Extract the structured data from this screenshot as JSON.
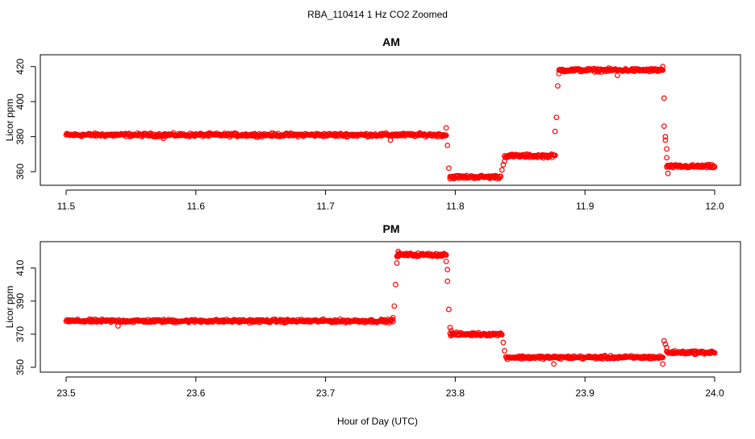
{
  "figure": {
    "title": "RBA_110414  1 Hz CO2 Zoomed",
    "xlabel": "Hour of Day (UTC)"
  },
  "chart_data": [
    {
      "type": "scatter",
      "title": "AM",
      "xlabel": "",
      "ylabel": "Licor ppm",
      "xlim": [
        11.5,
        12.0
      ],
      "ylim": [
        355,
        424
      ],
      "xticks": [
        11.5,
        11.6,
        11.7,
        11.8,
        11.9,
        12.0
      ],
      "xtick_labels": [
        "11.5",
        "11.6",
        "11.7",
        "11.8",
        "11.9",
        "12.0"
      ],
      "yticks": [
        360,
        380,
        400,
        420
      ],
      "ytick_labels": [
        "360",
        "380",
        "400",
        "420"
      ],
      "grid": false,
      "marker": "open-circle",
      "color": "#ff0000",
      "segments": [
        {
          "x_start": 11.5,
          "x_end": 11.793,
          "y": 381
        },
        {
          "x_start": 11.796,
          "x_end": 11.835,
          "y": 357
        },
        {
          "x_start": 11.838,
          "x_end": 11.877,
          "y": 369
        },
        {
          "x_start": 11.88,
          "x_end": 11.96,
          "y": 418
        },
        {
          "x_start": 11.963,
          "x_end": 12.0,
          "y": 363
        }
      ],
      "outliers": [
        {
          "x": 11.575,
          "y": 379
        },
        {
          "x": 11.75,
          "y": 378
        },
        {
          "x": 11.793,
          "y": 385
        },
        {
          "x": 11.794,
          "y": 375
        },
        {
          "x": 11.795,
          "y": 362
        },
        {
          "x": 11.796,
          "y": 356
        },
        {
          "x": 11.836,
          "y": 361
        },
        {
          "x": 11.837,
          "y": 364
        },
        {
          "x": 11.838,
          "y": 366
        },
        {
          "x": 11.877,
          "y": 383
        },
        {
          "x": 11.878,
          "y": 391
        },
        {
          "x": 11.879,
          "y": 409
        },
        {
          "x": 11.88,
          "y": 416
        },
        {
          "x": 11.925,
          "y": 415
        },
        {
          "x": 11.96,
          "y": 420
        },
        {
          "x": 11.961,
          "y": 402
        },
        {
          "x": 11.961,
          "y": 386
        },
        {
          "x": 11.962,
          "y": 380
        },
        {
          "x": 11.962,
          "y": 378
        },
        {
          "x": 11.963,
          "y": 373
        },
        {
          "x": 11.963,
          "y": 368
        },
        {
          "x": 11.964,
          "y": 359
        }
      ]
    },
    {
      "type": "scatter",
      "title": "PM",
      "xlabel": "",
      "ylabel": "Licor ppm",
      "xlim": [
        23.5,
        24.0
      ],
      "ylim": [
        350,
        423
      ],
      "xticks": [
        23.5,
        23.6,
        23.7,
        23.8,
        23.9,
        24.0
      ],
      "xtick_labels": [
        "23.5",
        "23.6",
        "23.7",
        "23.8",
        "23.9",
        "24.0"
      ],
      "yticks": [
        350,
        370,
        390,
        410
      ],
      "ytick_labels": [
        "350",
        "370",
        "390",
        "410"
      ],
      "grid": false,
      "marker": "open-circle",
      "color": "#ff0000",
      "segments": [
        {
          "x_start": 23.5,
          "x_end": 23.752,
          "y": 378
        },
        {
          "x_start": 23.755,
          "x_end": 23.793,
          "y": 418
        },
        {
          "x_start": 23.796,
          "x_end": 23.836,
          "y": 370
        },
        {
          "x_start": 23.839,
          "x_end": 23.96,
          "y": 356
        },
        {
          "x_start": 23.963,
          "x_end": 24.0,
          "y": 359
        }
      ],
      "outliers": [
        {
          "x": 23.54,
          "y": 375
        },
        {
          "x": 23.752,
          "y": 380
        },
        {
          "x": 23.753,
          "y": 387
        },
        {
          "x": 23.754,
          "y": 400
        },
        {
          "x": 23.755,
          "y": 413
        },
        {
          "x": 23.756,
          "y": 417
        },
        {
          "x": 23.756,
          "y": 420
        },
        {
          "x": 23.793,
          "y": 414
        },
        {
          "x": 23.794,
          "y": 409
        },
        {
          "x": 23.794,
          "y": 402
        },
        {
          "x": 23.795,
          "y": 385
        },
        {
          "x": 23.796,
          "y": 374
        },
        {
          "x": 23.797,
          "y": 372
        },
        {
          "x": 23.837,
          "y": 365
        },
        {
          "x": 23.838,
          "y": 360
        },
        {
          "x": 23.876,
          "y": 352
        },
        {
          "x": 23.96,
          "y": 352
        },
        {
          "x": 23.961,
          "y": 366
        },
        {
          "x": 23.962,
          "y": 364
        },
        {
          "x": 23.963,
          "y": 362
        }
      ]
    }
  ]
}
